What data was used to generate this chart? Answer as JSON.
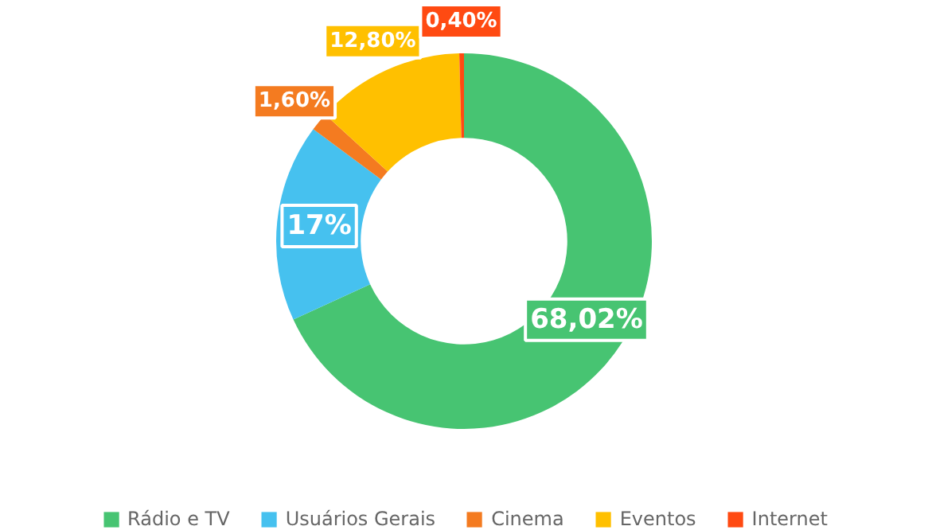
{
  "chart_data": {
    "type": "donut",
    "categories": [
      "Rádio e TV",
      "Usuários Gerais",
      "Cinema",
      "Eventos",
      "Internet"
    ],
    "values": [
      68.02,
      17,
      1.6,
      12.8,
      0.4
    ],
    "colors": [
      "#47c472",
      "#46c1ef",
      "#f47b20",
      "#ffc000",
      "#ff4a12"
    ],
    "value_labels": [
      "68,02%",
      "17%",
      "1,60%",
      "12,80%",
      "0,40%"
    ],
    "legend": "bottom"
  }
}
